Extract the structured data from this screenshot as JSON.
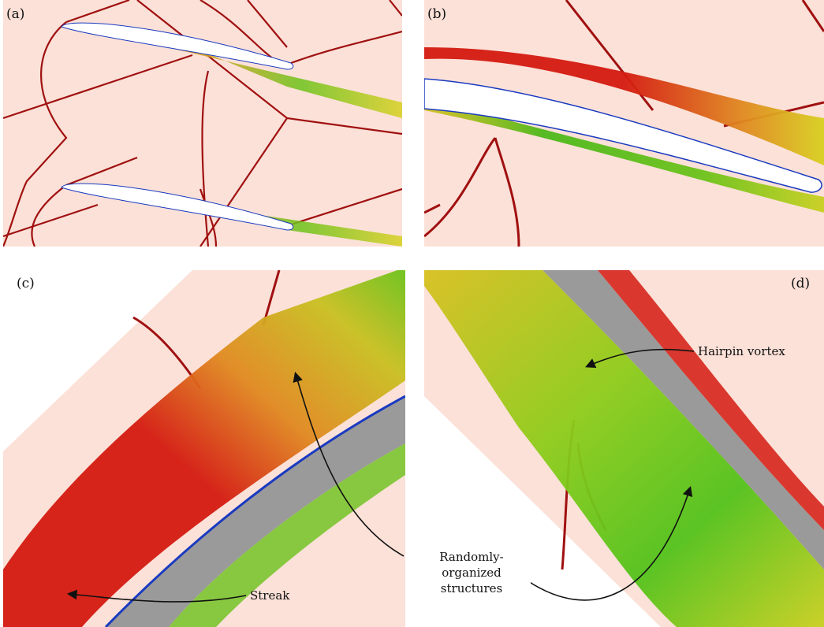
{
  "panels": [
    {
      "id": "a",
      "label": "(a)"
    },
    {
      "id": "b",
      "label": "(b)"
    },
    {
      "id": "c",
      "label": "(c)"
    },
    {
      "id": "d",
      "label": "(d)"
    }
  ],
  "annotations": {
    "hairpin": "Hairpin vortex",
    "random_line1": "Randomly-organized",
    "random_line2": "structures",
    "streak": "Streak"
  },
  "colors": {
    "background": "#fbe1d8",
    "shock": "#a01010",
    "airfoil_white": "#ffffff",
    "airfoil_grey": "#9a9a9a",
    "vortex_red": "#d41a10",
    "vortex_orange": "#e8801a",
    "vortex_yellow": "#d8d020",
    "vortex_green": "#52c21a",
    "vortex_blue": "#1a3ac0"
  }
}
